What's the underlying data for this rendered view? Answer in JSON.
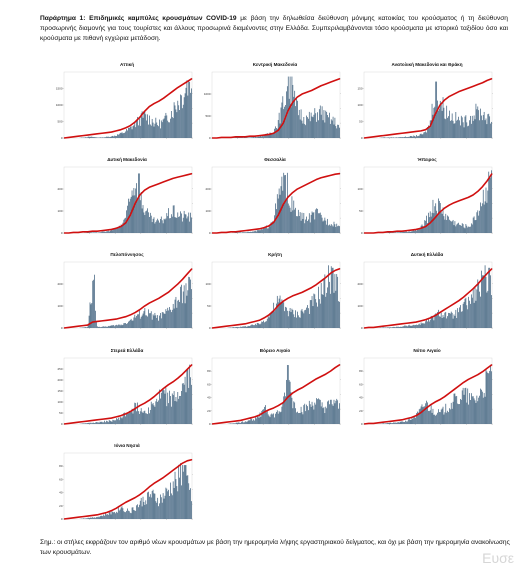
{
  "caption": {
    "lead": "Παράρτημα 1:",
    "title": "Επιδημικές καμπύλες κρουσμάτων COVID-19",
    "body": " με βάση την δηλωθείσα διεύθυνση μόνιμης κατοικίας του κρούσματος ή τη διεύθυνση προσωρινής διαμονής για τους τουρίστες και άλλους προσωρινά διαμένοντες στην Ελλάδα. Συμπεριλαμβάνονται τόσο κρούσματα με ιστορικό ταξιδίου όσο και κρούσματα με πιθανή εγχώρια μετάδοση."
  },
  "note": "Σημ.: οι στήλες εκφράζουν τον αριθμό νέων κρουσμάτων με βάση την ημερομηνία λήψης εργαστηριακού δείγματος, και όχι με βάση την ημερομηνία ανακοίνωσης των κρουσμάτων.",
  "watermark": "Ευσε",
  "colors": {
    "bars": "#4a6a85",
    "cumulative": "#d01010"
  },
  "chart_data": [
    {
      "type": "bar",
      "title": "Αττική",
      "ymax": 2000,
      "yticks": [
        0,
        500,
        1000,
        1500
      ],
      "shape": [
        0,
        0,
        0,
        0,
        0.01,
        0.02,
        0.02,
        0.01,
        0.01,
        0.02,
        0.03,
        0.05,
        0.08,
        0.12,
        0.18,
        0.26,
        0.34,
        0.42,
        0.36,
        0.3,
        0.26,
        0.3,
        0.4,
        0.52,
        0.66,
        0.8,
        0.92,
        1.0
      ],
      "cum": [
        0,
        0.01,
        0.02,
        0.03,
        0.04,
        0.05,
        0.06,
        0.07,
        0.08,
        0.09,
        0.1,
        0.12,
        0.14,
        0.17,
        0.21,
        0.27,
        0.35,
        0.45,
        0.53,
        0.58,
        0.62,
        0.67,
        0.73,
        0.79,
        0.85,
        0.9,
        0.95,
        1.0
      ]
    },
    {
      "type": "bar",
      "title": "Κεντρική Μακεδονία",
      "ymax": 1500,
      "yticks": [
        0,
        500,
        1000
      ],
      "shape": [
        0,
        0,
        0,
        0,
        0,
        0.01,
        0.01,
        0.01,
        0.01,
        0.02,
        0.03,
        0.05,
        0.08,
        0.14,
        0.3,
        0.62,
        0.98,
        0.8,
        0.55,
        0.42,
        0.36,
        0.38,
        0.44,
        0.5,
        0.4,
        0.35,
        0.3,
        0.2
      ],
      "cum": [
        0,
        0,
        0.01,
        0.01,
        0.01,
        0.02,
        0.02,
        0.02,
        0.03,
        0.03,
        0.04,
        0.05,
        0.06,
        0.08,
        0.13,
        0.25,
        0.45,
        0.6,
        0.69,
        0.74,
        0.77,
        0.8,
        0.84,
        0.88,
        0.91,
        0.94,
        0.97,
        1.0
      ]
    },
    {
      "type": "bar",
      "title": "Ανατολική Μακεδονία και Θράκη",
      "ymax": 200,
      "yticks": [
        0,
        50,
        100,
        150
      ],
      "shape": [
        0,
        0,
        0,
        0,
        0.01,
        0.01,
        0.01,
        0.01,
        0.02,
        0.02,
        0.03,
        0.04,
        0.06,
        0.1,
        0.3,
        0.9,
        0.7,
        0.55,
        0.45,
        0.38,
        0.34,
        0.3,
        0.34,
        0.42,
        0.5,
        0.46,
        0.38,
        0.3
      ],
      "cum": [
        0,
        0.01,
        0.02,
        0.03,
        0.04,
        0.05,
        0.06,
        0.07,
        0.08,
        0.09,
        0.1,
        0.11,
        0.12,
        0.14,
        0.2,
        0.4,
        0.55,
        0.64,
        0.7,
        0.74,
        0.78,
        0.81,
        0.84,
        0.87,
        0.9,
        0.93,
        0.97,
        1.0
      ]
    },
    {
      "type": "bar",
      "title": "Δυτική Μακεδονία",
      "ymax": 300,
      "yticks": [
        0,
        100,
        200
      ],
      "shape": [
        0,
        0,
        0,
        0,
        0,
        0.01,
        0.01,
        0.01,
        0.02,
        0.03,
        0.05,
        0.08,
        0.14,
        0.3,
        0.6,
        0.95,
        0.7,
        0.45,
        0.3,
        0.22,
        0.2,
        0.26,
        0.34,
        0.4,
        0.36,
        0.3,
        0.34,
        0.28
      ],
      "cum": [
        0,
        0,
        0.01,
        0.01,
        0.02,
        0.02,
        0.03,
        0.03,
        0.04,
        0.05,
        0.06,
        0.08,
        0.11,
        0.17,
        0.3,
        0.5,
        0.64,
        0.72,
        0.77,
        0.8,
        0.83,
        0.86,
        0.89,
        0.92,
        0.94,
        0.96,
        0.98,
        1.0
      ]
    },
    {
      "type": "bar",
      "title": "Θεσσαλία",
      "ymax": 300,
      "yticks": [
        0,
        100,
        200
      ],
      "shape": [
        0,
        0,
        0,
        0,
        0,
        0.01,
        0.01,
        0.02,
        0.02,
        0.03,
        0.05,
        0.08,
        0.14,
        0.3,
        0.62,
        0.96,
        0.7,
        0.5,
        0.36,
        0.3,
        0.26,
        0.3,
        0.36,
        0.3,
        0.24,
        0.2,
        0.18,
        0.12
      ],
      "cum": [
        0,
        0,
        0.01,
        0.01,
        0.02,
        0.02,
        0.03,
        0.04,
        0.05,
        0.06,
        0.07,
        0.09,
        0.12,
        0.18,
        0.3,
        0.48,
        0.6,
        0.68,
        0.74,
        0.78,
        0.82,
        0.86,
        0.9,
        0.93,
        0.95,
        0.97,
        0.99,
        1.0
      ]
    },
    {
      "type": "bar",
      "title": "Ήπειρος",
      "ymax": 150,
      "yticks": [
        0,
        50,
        100
      ],
      "shape": [
        0,
        0,
        0,
        0,
        0,
        0.01,
        0.01,
        0.01,
        0.02,
        0.02,
        0.03,
        0.05,
        0.1,
        0.2,
        0.4,
        0.55,
        0.5,
        0.36,
        0.26,
        0.2,
        0.16,
        0.14,
        0.12,
        0.2,
        0.4,
        0.62,
        0.85,
        1.0
      ],
      "cum": [
        0,
        0,
        0,
        0.01,
        0.01,
        0.02,
        0.02,
        0.03,
        0.03,
        0.04,
        0.05,
        0.06,
        0.08,
        0.11,
        0.17,
        0.26,
        0.35,
        0.42,
        0.47,
        0.51,
        0.54,
        0.57,
        0.6,
        0.64,
        0.7,
        0.78,
        0.88,
        1.0
      ]
    },
    {
      "type": "bar",
      "title": "Πελοπόννησος",
      "ymax": 300,
      "yticks": [
        0,
        100,
        200
      ],
      "shape": [
        0,
        0,
        0,
        0,
        0.01,
        0.02,
        0.85,
        0.02,
        0.02,
        0.03,
        0.04,
        0.05,
        0.06,
        0.1,
        0.14,
        0.2,
        0.26,
        0.3,
        0.26,
        0.22,
        0.2,
        0.24,
        0.3,
        0.4,
        0.5,
        0.62,
        0.74,
        0.8
      ],
      "cum": [
        0,
        0.01,
        0.02,
        0.03,
        0.04,
        0.05,
        0.1,
        0.11,
        0.12,
        0.13,
        0.14,
        0.15,
        0.17,
        0.19,
        0.22,
        0.26,
        0.31,
        0.37,
        0.42,
        0.46,
        0.5,
        0.55,
        0.6,
        0.67,
        0.74,
        0.82,
        0.91,
        1.0
      ]
    },
    {
      "type": "bar",
      "title": "Κρήτη",
      "ymax": 150,
      "yticks": [
        0,
        50,
        100
      ],
      "shape": [
        0,
        0,
        0,
        0,
        0.01,
        0.02,
        0.02,
        0.03,
        0.04,
        0.06,
        0.08,
        0.14,
        0.24,
        0.36,
        0.5,
        0.44,
        0.34,
        0.28,
        0.26,
        0.3,
        0.36,
        0.44,
        0.54,
        0.66,
        0.8,
        0.96,
        0.86,
        0.7
      ],
      "cum": [
        0,
        0.01,
        0.02,
        0.03,
        0.04,
        0.05,
        0.06,
        0.07,
        0.09,
        0.11,
        0.13,
        0.17,
        0.22,
        0.29,
        0.38,
        0.45,
        0.5,
        0.54,
        0.57,
        0.6,
        0.64,
        0.68,
        0.73,
        0.79,
        0.85,
        0.92,
        0.97,
        1.0
      ]
    },
    {
      "type": "bar",
      "title": "Δυτική Ελλάδα",
      "ymax": 300,
      "yticks": [
        0,
        100,
        200
      ],
      "shape": [
        0,
        0,
        0,
        0,
        0.01,
        0.01,
        0.02,
        0.02,
        0.03,
        0.04,
        0.05,
        0.06,
        0.08,
        0.12,
        0.16,
        0.22,
        0.28,
        0.26,
        0.22,
        0.24,
        0.3,
        0.38,
        0.48,
        0.58,
        0.7,
        0.84,
        0.96,
        0.8
      ],
      "cum": [
        0,
        0.01,
        0.01,
        0.02,
        0.03,
        0.04,
        0.05,
        0.06,
        0.07,
        0.08,
        0.09,
        0.1,
        0.12,
        0.14,
        0.17,
        0.21,
        0.26,
        0.31,
        0.36,
        0.41,
        0.46,
        0.52,
        0.59,
        0.66,
        0.74,
        0.83,
        0.92,
        1.0
      ]
    },
    {
      "type": "bar",
      "title": "Στερεά Ελλάδα",
      "ymax": 300,
      "yticks": [
        0,
        50,
        100,
        150,
        200,
        250
      ],
      "shape": [
        0,
        0,
        0,
        0,
        0.01,
        0.02,
        0.02,
        0.03,
        0.04,
        0.05,
        0.06,
        0.08,
        0.12,
        0.18,
        0.26,
        0.32,
        0.28,
        0.24,
        0.3,
        0.38,
        0.48,
        0.56,
        0.5,
        0.44,
        0.52,
        0.64,
        0.8,
        0.9
      ],
      "cum": [
        0,
        0.01,
        0.02,
        0.03,
        0.04,
        0.05,
        0.06,
        0.07,
        0.08,
        0.09,
        0.1,
        0.12,
        0.14,
        0.17,
        0.21,
        0.26,
        0.31,
        0.35,
        0.4,
        0.46,
        0.53,
        0.6,
        0.66,
        0.71,
        0.77,
        0.84,
        0.92,
        1.0
      ]
    },
    {
      "type": "bar",
      "title": "Βόρειο Αιγαίο",
      "ymax": 100,
      "yticks": [
        0,
        20,
        40,
        60,
        80
      ],
      "shape": [
        0,
        0,
        0,
        0,
        0.01,
        0.02,
        0.03,
        0.05,
        0.08,
        0.1,
        0.14,
        0.36,
        0.2,
        0.16,
        0.22,
        0.3,
        0.94,
        0.4,
        0.3,
        0.26,
        0.3,
        0.36,
        0.42,
        0.34,
        0.3,
        0.36,
        0.42,
        0.3
      ],
      "cum": [
        0,
        0.01,
        0.02,
        0.03,
        0.04,
        0.05,
        0.06,
        0.08,
        0.1,
        0.12,
        0.15,
        0.2,
        0.24,
        0.27,
        0.31,
        0.36,
        0.45,
        0.52,
        0.57,
        0.61,
        0.66,
        0.71,
        0.76,
        0.8,
        0.84,
        0.89,
        0.95,
        1.0
      ]
    },
    {
      "type": "bar",
      "title": "Νότιο Αιγαίο",
      "ymax": 100,
      "yticks": [
        0,
        20,
        40,
        60,
        80
      ],
      "shape": [
        0,
        0,
        0,
        0,
        0.01,
        0.02,
        0.02,
        0.03,
        0.04,
        0.06,
        0.1,
        0.16,
        0.26,
        0.4,
        0.3,
        0.24,
        0.2,
        0.26,
        0.34,
        0.42,
        0.48,
        0.56,
        0.5,
        0.44,
        0.5,
        0.62,
        0.8,
        0.94
      ],
      "cum": [
        0,
        0.01,
        0.01,
        0.02,
        0.03,
        0.04,
        0.05,
        0.06,
        0.07,
        0.09,
        0.11,
        0.14,
        0.19,
        0.26,
        0.32,
        0.37,
        0.41,
        0.46,
        0.52,
        0.58,
        0.64,
        0.7,
        0.75,
        0.79,
        0.83,
        0.88,
        0.94,
        1.0
      ]
    },
    {
      "type": "bar",
      "title": "Ιόνια Νησιά",
      "ymax": 100,
      "yticks": [
        0,
        20,
        40,
        60,
        80
      ],
      "shape": [
        0,
        0,
        0,
        0,
        0.01,
        0.02,
        0.03,
        0.04,
        0.06,
        0.09,
        0.12,
        0.16,
        0.22,
        0.18,
        0.14,
        0.2,
        0.28,
        0.36,
        0.44,
        0.4,
        0.34,
        0.4,
        0.5,
        0.6,
        0.74,
        0.86,
        0.7,
        0.5
      ],
      "cum": [
        0,
        0.01,
        0.02,
        0.03,
        0.04,
        0.05,
        0.06,
        0.07,
        0.09,
        0.11,
        0.14,
        0.18,
        0.23,
        0.28,
        0.32,
        0.36,
        0.41,
        0.47,
        0.54,
        0.6,
        0.65,
        0.7,
        0.76,
        0.82,
        0.88,
        0.94,
        0.98,
        1.0
      ]
    }
  ]
}
